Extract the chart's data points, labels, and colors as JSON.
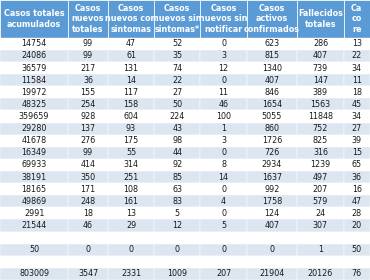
{
  "col_headers": [
    "Casos totales\nacumulados",
    "Casos\nnuevos\ntotales",
    "Casos\nnuevos con\nsintomas",
    "Casos\nnuevos sin\nsintomas*",
    "Casos\nnuevos sin\nnotificar",
    "Casos\nactivos\nconfirmados",
    "Fallecidos\ntotales",
    "Ca\nco\nre"
  ],
  "col_widths_rel": [
    1.55,
    0.9,
    1.05,
    1.05,
    1.05,
    1.15,
    1.05,
    0.6
  ],
  "rows": [
    [
      "14754",
      "99",
      "47",
      "52",
      "0",
      "623",
      "286",
      "13"
    ],
    [
      "24086",
      "99",
      "61",
      "35",
      "3",
      "815",
      "407",
      "22"
    ],
    [
      "36579",
      "217",
      "131",
      "74",
      "12",
      "1340",
      "739",
      "34"
    ],
    [
      "11584",
      "36",
      "14",
      "22",
      "0",
      "407",
      "147",
      "11"
    ],
    [
      "19972",
      "155",
      "117",
      "27",
      "11",
      "846",
      "389",
      "18"
    ],
    [
      "48325",
      "254",
      "158",
      "50",
      "46",
      "1654",
      "1563",
      "45"
    ],
    [
      "359659",
      "928",
      "604",
      "224",
      "100",
      "5055",
      "11848",
      "34"
    ],
    [
      "29280",
      "137",
      "93",
      "43",
      "1",
      "860",
      "752",
      "27"
    ],
    [
      "41678",
      "276",
      "175",
      "98",
      "3",
      "1726",
      "825",
      "39"
    ],
    [
      "16349",
      "99",
      "55",
      "44",
      "0",
      "726",
      "316",
      "15"
    ],
    [
      "69933",
      "414",
      "314",
      "92",
      "8",
      "2934",
      "1239",
      "65"
    ],
    [
      "38191",
      "350",
      "251",
      "85",
      "14",
      "1637",
      "497",
      "36"
    ],
    [
      "18165",
      "171",
      "108",
      "63",
      "0",
      "992",
      "207",
      "16"
    ],
    [
      "49869",
      "248",
      "161",
      "83",
      "4",
      "1758",
      "579",
      "47"
    ],
    [
      "2991",
      "18",
      "13",
      "5",
      "0",
      "124",
      "24",
      "28"
    ],
    [
      "21544",
      "46",
      "29",
      "12",
      "5",
      "407",
      "307",
      "20"
    ],
    [
      "",
      "",
      "",
      "",
      "",
      "",
      "",
      ""
    ],
    [
      "50",
      "0",
      "0",
      "0",
      "0",
      "0",
      "1",
      "50"
    ],
    [
      "",
      "",
      "",
      "",
      "",
      "",
      "",
      ""
    ],
    [
      "803009",
      "3547",
      "2331",
      "1009",
      "207",
      "21904",
      "20126",
      "76"
    ]
  ],
  "header_bg": "#5b9bd5",
  "header_text": "#ffffff",
  "row_bg_light": "#dce6f1",
  "row_bg_white": "#ffffff",
  "text_color": "#1a1a1a",
  "border_color": "#ffffff",
  "font_size": 5.8,
  "header_font_size": 5.8
}
